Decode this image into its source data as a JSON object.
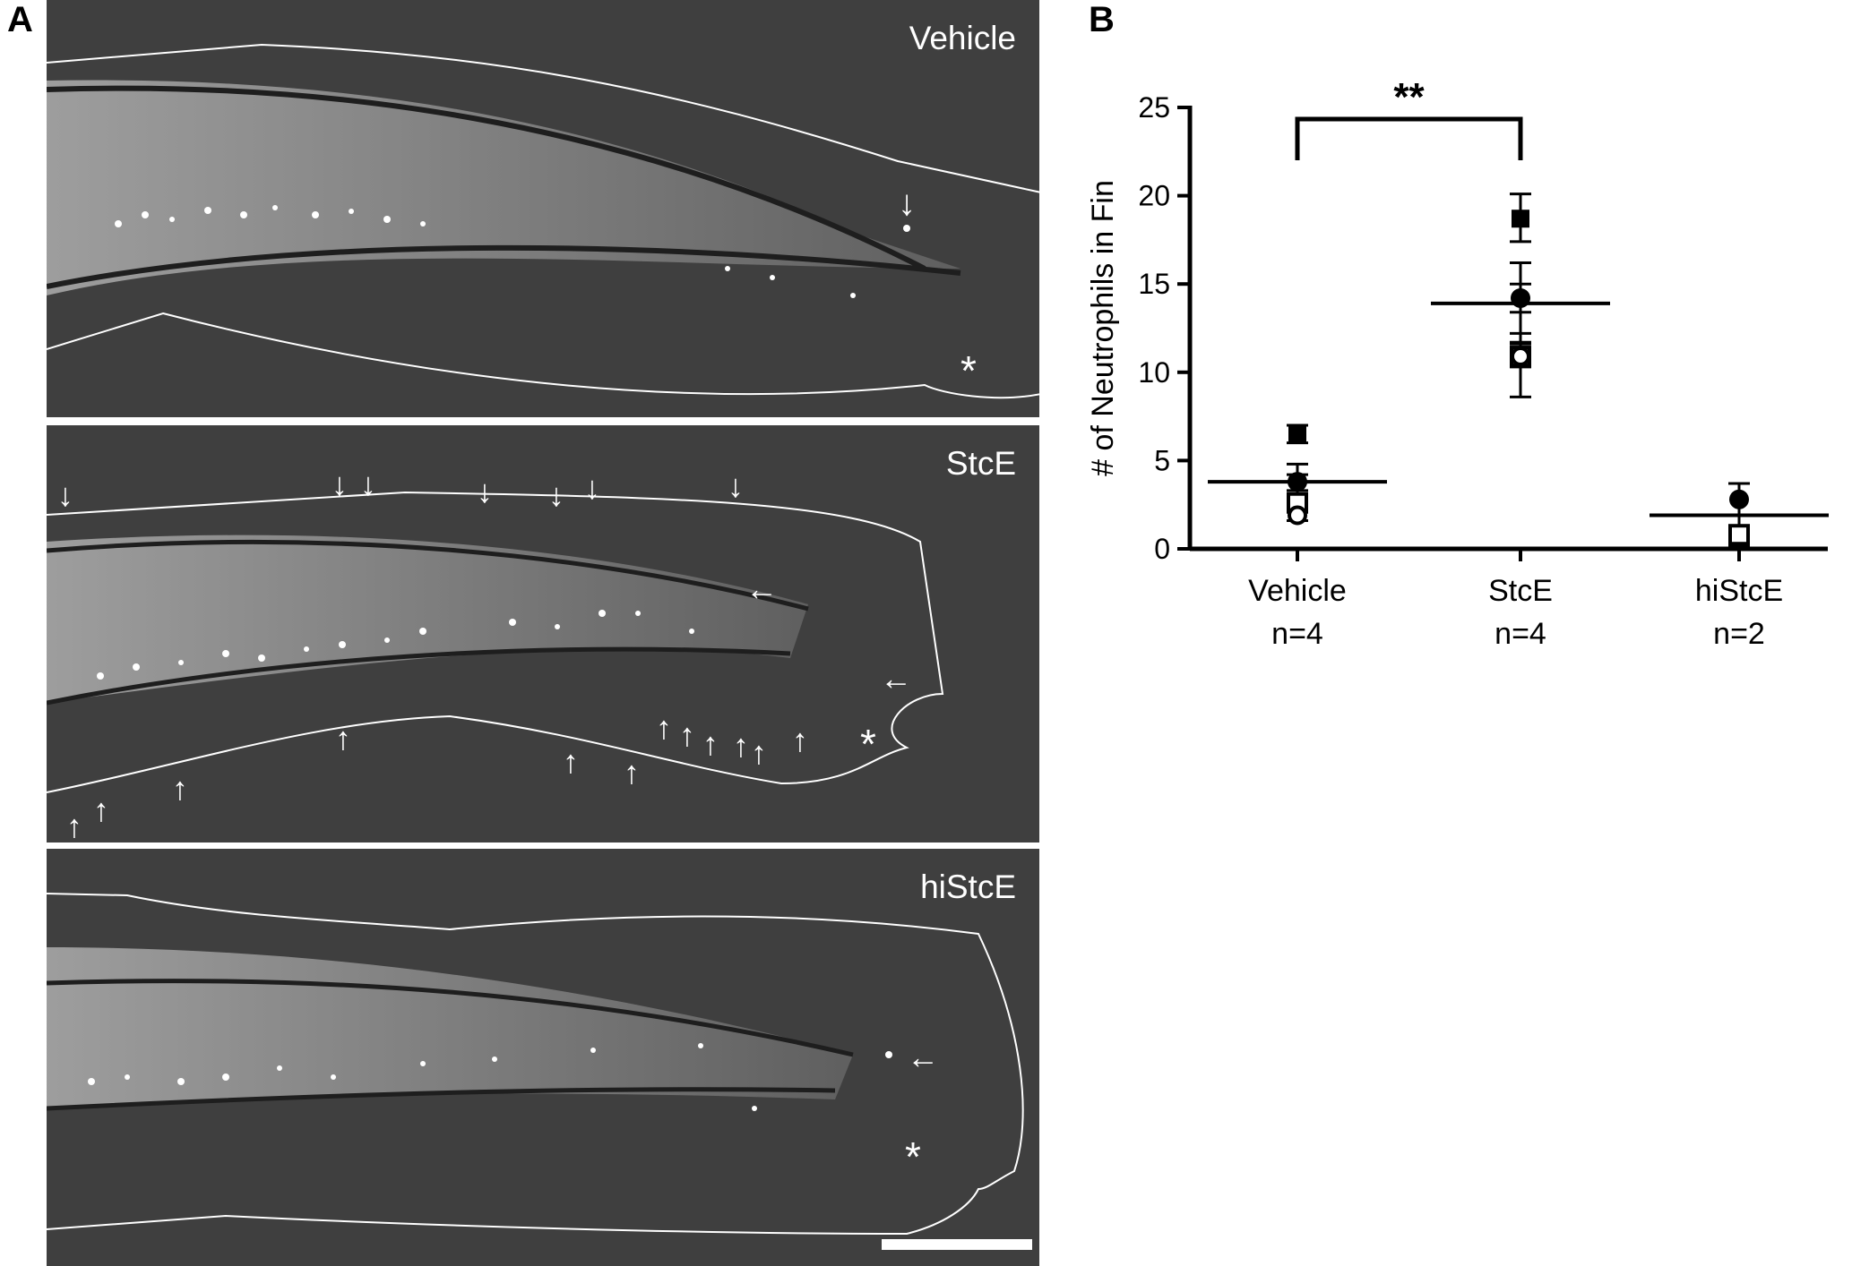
{
  "panel_a": {
    "letter": "A",
    "images": [
      {
        "label": "Vehicle"
      },
      {
        "label": "StcE"
      },
      {
        "label": "hiStcE"
      }
    ],
    "arrow_glyph": "↓",
    "asterisk": "*"
  },
  "panel_b": {
    "letter": "B"
  },
  "chart_data": {
    "type": "scatter",
    "ylabel": "# of Neutrophils in Fin",
    "ylim": [
      0,
      25
    ],
    "yticks": [
      0,
      5,
      10,
      15,
      20,
      25
    ],
    "groups": [
      {
        "category": "Vehicle",
        "n_label": "n=4",
        "mean": 3.8,
        "error_upper": 4.8,
        "error_lower": 2.8,
        "points": [
          {
            "marker": "filled-square",
            "value": 6.5,
            "err_upper": 7.0,
            "err_lower": 6.0
          },
          {
            "marker": "filled-circle",
            "value": 3.8,
            "err_upper": 4.2,
            "err_lower": 3.3
          },
          {
            "marker": "open-square",
            "value": 2.6,
            "err_upper": 3.0,
            "err_lower": 2.2
          },
          {
            "marker": "open-circle",
            "value": 1.9,
            "err_upper": 2.2,
            "err_lower": 1.6
          }
        ]
      },
      {
        "category": "StcE",
        "n_label": "n=4",
        "mean": 13.9,
        "error_upper": 16.2,
        "error_lower": 11.7,
        "points": [
          {
            "marker": "filled-square",
            "value": 18.7,
            "err_upper": 20.1,
            "err_lower": 17.4
          },
          {
            "marker": "filled-circle",
            "value": 14.2,
            "err_upper": 15.0,
            "err_lower": 13.4
          },
          {
            "marker": "open-square",
            "value": 10.9,
            "err_upper": 12.2,
            "err_lower": 8.6
          },
          {
            "marker": "open-circle",
            "value": 10.9,
            "err_upper": 11.6,
            "err_lower": 10.3
          }
        ]
      },
      {
        "category": "hiStcE",
        "n_label": "n=2",
        "mean": 1.9,
        "error_upper": 3.7,
        "error_lower": 0.2,
        "points": [
          {
            "marker": "filled-circle",
            "value": 2.8,
            "err_upper": 3.7,
            "err_lower": 1.9
          },
          {
            "marker": "open-square",
            "value": 0.8,
            "err_upper": 1.2,
            "err_lower": 0.4
          }
        ]
      }
    ],
    "significance": {
      "from": "Vehicle",
      "to": "StcE",
      "label": "**"
    }
  }
}
